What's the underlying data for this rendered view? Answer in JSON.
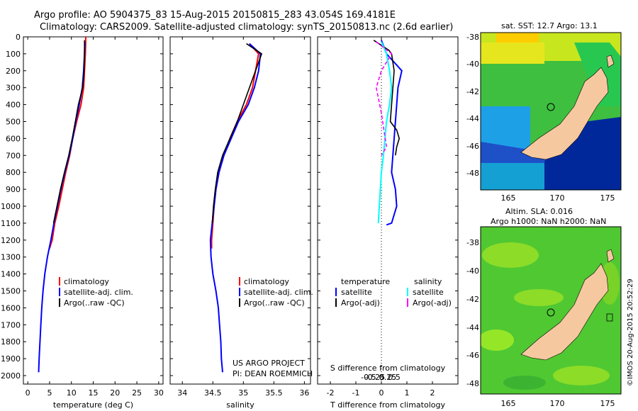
{
  "header": {
    "line1": "Argo profile: AO 5904375_83 15-Aug-2015 20150815_283 43.054S 169.4181E",
    "line2": "Climatology: CARS2009. Satellite-adjusted climatology: synTS_20150813.nc (2.6d earlier)"
  },
  "depth_axis": {
    "ticks": [
      0,
      100,
      200,
      300,
      400,
      500,
      600,
      700,
      800,
      900,
      1000,
      1100,
      1200,
      1300,
      1400,
      1500,
      1600,
      1700,
      1800,
      1900,
      2000
    ]
  },
  "legend_main": {
    "climatology": "climatology",
    "satellite": "satellite-adj. clim.",
    "argo": "Argo(..raw -QC)"
  },
  "legend_diff": {
    "temperature_title": "temperature",
    "salinity_title": "salinity",
    "satellite": "satellite",
    "argo": "Argo(-adj)"
  },
  "credits": {
    "line1": "US ARGO PROJECT",
    "line2": "PI: DEAN ROEMMICH"
  },
  "map_top": {
    "title": "sat. SST: 12.7 Argo: 13.1",
    "yticks": [
      "-38",
      "-40",
      "-42",
      "-44",
      "-46",
      "-48"
    ],
    "xticks": [
      "165",
      "170",
      "175"
    ]
  },
  "map_bottom": {
    "title1": "Altim. SLA: 0.016",
    "title2": "Argo h1000: NaN h2000: NaN",
    "yticks": [
      "-38",
      "-40",
      "-42",
      "-44",
      "-46",
      "-48"
    ],
    "xticks": [
      "165",
      "170",
      "175"
    ]
  },
  "watermark": "©IMOS 20-Aug-2015 20:52:29",
  "colors": {
    "climatology": "#ff0000",
    "satellite": "#0000ff",
    "argo": "#000000",
    "salinity_satellite": "#00ffff",
    "salinity_argo": "#ff00ff",
    "land": "#f5c8a0"
  },
  "chart_data": [
    {
      "type": "line",
      "xlabel": "temperature (deg C)",
      "xlim": [
        -1,
        31
      ],
      "ylim": [
        0,
        2050
      ],
      "xticks": [
        0,
        5,
        10,
        15,
        20,
        25,
        30
      ],
      "y_inverted": true,
      "series": [
        {
          "name": "climatology",
          "x": [
            13.3,
            13.2,
            13.0,
            12.8,
            12.2,
            11.2,
            10.3,
            9.6,
            8.7,
            7.9,
            7.1,
            6.2,
            5.6,
            5.1,
            4.8
          ],
          "y": [
            0,
            100,
            200,
            300,
            400,
            500,
            600,
            700,
            800,
            900,
            1000,
            1100,
            1200,
            1240,
            1260
          ]
        },
        {
          "name": "satellite-adj. clim.",
          "x": [
            13.1,
            13.0,
            12.8,
            12.5,
            11.8,
            11.0,
            10.3,
            9.5,
            8.5,
            7.6,
            6.8,
            6.0,
            5.3,
            4.5,
            3.9,
            3.5,
            3.2,
            3.0,
            2.8,
            2.6,
            2.5
          ],
          "y": [
            30,
            100,
            200,
            300,
            400,
            500,
            600,
            700,
            800,
            900,
            1000,
            1100,
            1200,
            1300,
            1400,
            1500,
            1600,
            1700,
            1800,
            1900,
            1980
          ]
        },
        {
          "name": "Argo(..raw -QC)",
          "x": [
            13.0,
            13.0,
            12.9,
            12.6,
            11.6,
            10.9,
            10.2,
            9.4,
            8.4,
            7.5,
            6.7,
            5.9
          ],
          "y": [
            20,
            100,
            200,
            300,
            400,
            500,
            600,
            700,
            800,
            900,
            1000,
            1100
          ]
        }
      ]
    },
    {
      "type": "line",
      "xlabel": "salinity",
      "xlim": [
        33.8,
        36.1
      ],
      "ylim": [
        0,
        2050
      ],
      "xticks": [
        34,
        34.5,
        35,
        35.5,
        36
      ],
      "xtick_labels": [
        "34",
        "34.5",
        "35",
        "35.5",
        "36"
      ],
      "y_inverted": true,
      "series": [
        {
          "name": "climatology",
          "x": [
            35.1,
            35.25,
            35.2,
            35.15,
            35.05,
            34.9,
            34.78,
            34.68,
            34.6,
            34.55,
            34.52,
            34.5,
            34.48,
            34.48
          ],
          "y": [
            40,
            100,
            200,
            300,
            400,
            500,
            600,
            700,
            800,
            900,
            1000,
            1100,
            1200,
            1250
          ]
        },
        {
          "name": "satellite-adj. clim.",
          "x": [
            35.1,
            35.28,
            35.25,
            35.18,
            35.08,
            34.92,
            34.8,
            34.68,
            34.6,
            34.55,
            34.52,
            34.49,
            34.46,
            34.47,
            34.5,
            34.55,
            34.59,
            34.61,
            34.63,
            34.64,
            34.66
          ],
          "y": [
            40,
            100,
            200,
            300,
            400,
            500,
            600,
            700,
            800,
            900,
            1000,
            1100,
            1200,
            1300,
            1400,
            1500,
            1600,
            1700,
            1800,
            1900,
            1980
          ]
        },
        {
          "name": "Argo(..raw -QC)",
          "x": [
            35.05,
            35.3,
            35.2,
            35.1,
            35.0,
            34.9,
            34.78,
            34.66,
            34.58,
            34.54,
            34.51,
            34.49
          ],
          "y": [
            40,
            100,
            200,
            300,
            400,
            500,
            600,
            700,
            800,
            900,
            1000,
            1100
          ]
        }
      ]
    },
    {
      "type": "line",
      "xlabel": "T difference from climatology",
      "xlabel2": "S difference from climatology",
      "xlim": [
        -2.5,
        3
      ],
      "ylim": [
        0,
        2050
      ],
      "xticks": [
        -2,
        -1,
        0,
        1,
        2
      ],
      "xtick_labels": [
        "-2",
        "-1",
        "0",
        "1",
        "2"
      ],
      "s_xticks": [
        -0.5,
        -0.25,
        0,
        0.25,
        0.5
      ],
      "s_xtick_labels": [
        "-0.5",
        "-0.25",
        "0",
        "0.25",
        "0.5"
      ],
      "y_inverted": true,
      "series": [
        {
          "name": "temperature satellite",
          "x": [
            0.0,
            0.2,
            0.8,
            0.65,
            0.6,
            0.55,
            0.5,
            0.45,
            0.4,
            0.55,
            0.6,
            0.4,
            0.2
          ],
          "y": [
            20,
            100,
            200,
            300,
            400,
            500,
            600,
            700,
            800,
            900,
            1000,
            1100,
            1110
          ]
        },
        {
          "name": "temperature Argo(-adj)",
          "x": [
            -0.3,
            0.3,
            0.4,
            0.5,
            0.35,
            0.6,
            0.7,
            0.6,
            0.55
          ],
          "y": [
            20,
            80,
            100,
            200,
            500,
            550,
            600,
            650,
            700
          ]
        },
        {
          "name": "salinity satellite",
          "x": [
            0.0,
            0.05,
            0.08,
            0.1,
            0.08,
            0.05,
            0.02,
            0.0,
            -0.02,
            -0.03
          ],
          "y": [
            30,
            100,
            200,
            300,
            400,
            500,
            700,
            800,
            1000,
            1100
          ]
        },
        {
          "name": "salinity Argo(-adj)",
          "x": [
            -0.05,
            0.1,
            0.05,
            0.0,
            -0.05,
            0.0,
            0.05,
            0.0
          ],
          "y": [
            30,
            100,
            150,
            200,
            300,
            450,
            650,
            700
          ]
        }
      ]
    }
  ]
}
